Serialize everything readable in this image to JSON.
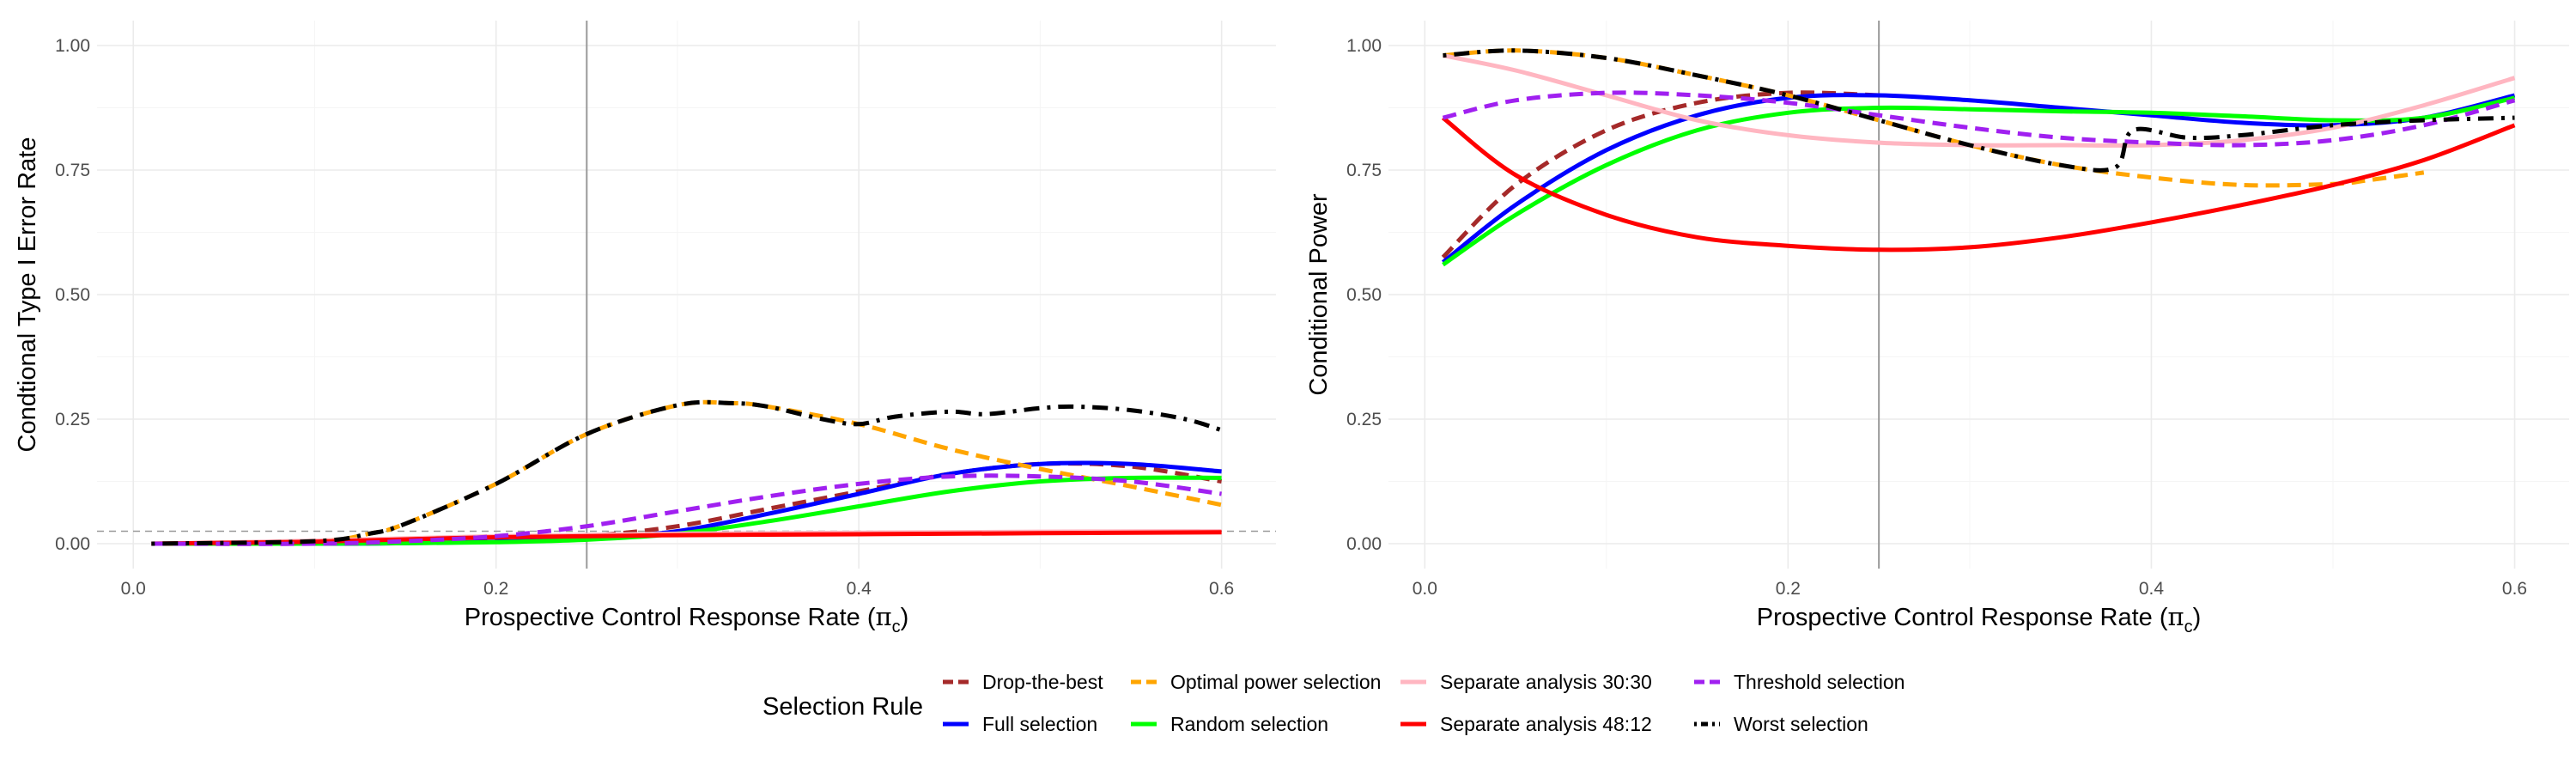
{
  "chart_data": [
    {
      "type": "line",
      "panel": "left",
      "ylabel": "Condtional Type I Error Rate",
      "xlabel_main": "Prospective Control Response Rate (",
      "xlabel_symbol": "π",
      "xlabel_sub": "c",
      "xlabel_close": ")",
      "xlim": [
        -0.02,
        0.63
      ],
      "ylim": [
        -0.05,
        1.05
      ],
      "x_ticks": [
        0.0,
        0.2,
        0.4,
        0.6
      ],
      "x_tick_labels": [
        "0.0",
        "0.2",
        "0.4",
        "0.6"
      ],
      "y_ticks": [
        0.0,
        0.25,
        0.5,
        0.75,
        1.0
      ],
      "y_tick_labels": [
        "0.00",
        "0.25",
        "0.50",
        "0.75",
        "1.00"
      ],
      "vline": 0.25,
      "hline": 0.025,
      "series": [
        {
          "name": "Drop-the-best",
          "x": [
            0.01,
            0.1,
            0.15,
            0.2,
            0.25,
            0.3,
            0.35,
            0.4,
            0.45,
            0.5,
            0.55,
            0.6
          ],
          "y": [
            0.0,
            0.0,
            0.002,
            0.007,
            0.015,
            0.035,
            0.07,
            0.105,
            0.14,
            0.16,
            0.155,
            0.125
          ]
        },
        {
          "name": "Full selection",
          "x": [
            0.01,
            0.1,
            0.15,
            0.2,
            0.25,
            0.3,
            0.35,
            0.4,
            0.45,
            0.5,
            0.55,
            0.6
          ],
          "y": [
            0.0,
            0.0,
            0.001,
            0.004,
            0.01,
            0.025,
            0.06,
            0.1,
            0.14,
            0.16,
            0.16,
            0.145
          ]
        },
        {
          "name": "Optimal power selection",
          "x": [
            0.01,
            0.1,
            0.13,
            0.15,
            0.2,
            0.25,
            0.3,
            0.33,
            0.35,
            0.4,
            0.45,
            0.5,
            0.55,
            0.6
          ],
          "y": [
            0.0,
            0.005,
            0.02,
            0.04,
            0.12,
            0.22,
            0.278,
            0.282,
            0.275,
            0.24,
            0.19,
            0.15,
            0.115,
            0.078
          ]
        },
        {
          "name": "Random selection",
          "x": [
            0.01,
            0.1,
            0.15,
            0.2,
            0.25,
            0.3,
            0.35,
            0.4,
            0.45,
            0.5,
            0.55,
            0.6
          ],
          "y": [
            0.0,
            0.0,
            0.001,
            0.003,
            0.008,
            0.02,
            0.045,
            0.075,
            0.105,
            0.125,
            0.132,
            0.132
          ]
        },
        {
          "name": "Separate analysis 30:30",
          "x": [
            0.01,
            0.1,
            0.2,
            0.3,
            0.4,
            0.5,
            0.6
          ],
          "y": [
            0.0,
            0.006,
            0.015,
            0.02,
            0.022,
            0.024,
            0.025
          ]
        },
        {
          "name": "Separate analysis 48:12",
          "x": [
            0.01,
            0.1,
            0.2,
            0.3,
            0.4,
            0.5,
            0.6
          ],
          "y": [
            0.0,
            0.004,
            0.013,
            0.017,
            0.019,
            0.021,
            0.023
          ]
        },
        {
          "name": "Threshold selection",
          "x": [
            0.01,
            0.1,
            0.15,
            0.2,
            0.25,
            0.3,
            0.35,
            0.4,
            0.45,
            0.5,
            0.55,
            0.6
          ],
          "y": [
            0.0,
            0.0,
            0.005,
            0.015,
            0.035,
            0.065,
            0.095,
            0.12,
            0.135,
            0.135,
            0.125,
            0.1
          ]
        },
        {
          "name": "Worst selection",
          "x": [
            0.01,
            0.1,
            0.13,
            0.15,
            0.2,
            0.25,
            0.3,
            0.33,
            0.35,
            0.38,
            0.4,
            0.42,
            0.45,
            0.47,
            0.5,
            0.52,
            0.55,
            0.58,
            0.6
          ],
          "y": [
            0.0,
            0.005,
            0.02,
            0.04,
            0.12,
            0.22,
            0.278,
            0.282,
            0.275,
            0.25,
            0.24,
            0.255,
            0.265,
            0.26,
            0.272,
            0.275,
            0.268,
            0.25,
            0.228
          ]
        }
      ]
    },
    {
      "type": "line",
      "panel": "right",
      "ylabel": "Conditional Power",
      "xlabel_main": "Prospective Control Response Rate (",
      "xlabel_symbol": "π",
      "xlabel_sub": "c",
      "xlabel_close": ")",
      "xlim": [
        -0.02,
        0.63
      ],
      "ylim": [
        -0.05,
        1.05
      ],
      "x_ticks": [
        0.0,
        0.2,
        0.4,
        0.6
      ],
      "x_tick_labels": [
        "0.0",
        "0.2",
        "0.4",
        "0.6"
      ],
      "y_ticks": [
        0.0,
        0.25,
        0.5,
        0.75,
        1.0
      ],
      "y_tick_labels": [
        "0.00",
        "0.25",
        "0.50",
        "0.75",
        "1.00"
      ],
      "vline": 0.25,
      "series": [
        {
          "name": "Drop-the-best",
          "x": [
            0.01,
            0.05,
            0.1,
            0.15,
            0.2,
            0.25
          ],
          "y": [
            0.575,
            0.72,
            0.83,
            0.885,
            0.905,
            0.9
          ]
        },
        {
          "name": "Full selection",
          "x": [
            0.01,
            0.05,
            0.1,
            0.15,
            0.2,
            0.25,
            0.3,
            0.35,
            0.4,
            0.45,
            0.5,
            0.55,
            0.6
          ],
          "y": [
            0.565,
            0.68,
            0.79,
            0.86,
            0.895,
            0.9,
            0.89,
            0.875,
            0.86,
            0.845,
            0.84,
            0.855,
            0.9
          ]
        },
        {
          "name": "Optimal power selection",
          "x": [
            0.01,
            0.05,
            0.1,
            0.15,
            0.2,
            0.25,
            0.3,
            0.35,
            0.4,
            0.45,
            0.5,
            0.52,
            0.55
          ],
          "y": [
            0.98,
            0.99,
            0.975,
            0.94,
            0.9,
            0.85,
            0.8,
            0.76,
            0.735,
            0.72,
            0.722,
            0.73,
            0.745
          ]
        },
        {
          "name": "Random selection",
          "x": [
            0.01,
            0.05,
            0.1,
            0.15,
            0.2,
            0.25,
            0.3,
            0.35,
            0.4,
            0.45,
            0.5,
            0.55,
            0.6
          ],
          "y": [
            0.56,
            0.66,
            0.76,
            0.83,
            0.865,
            0.875,
            0.872,
            0.868,
            0.865,
            0.858,
            0.85,
            0.855,
            0.895
          ]
        },
        {
          "name": "Separate analysis 30:30",
          "x": [
            0.01,
            0.05,
            0.1,
            0.15,
            0.2,
            0.25,
            0.3,
            0.35,
            0.4,
            0.45,
            0.5,
            0.55,
            0.6
          ],
          "y": [
            0.98,
            0.95,
            0.9,
            0.85,
            0.82,
            0.805,
            0.8,
            0.8,
            0.8,
            0.81,
            0.835,
            0.88,
            0.935
          ]
        },
        {
          "name": "Separate analysis 48:12",
          "x": [
            0.01,
            0.05,
            0.1,
            0.15,
            0.2,
            0.25,
            0.3,
            0.35,
            0.4,
            0.45,
            0.5,
            0.55,
            0.6
          ],
          "y": [
            0.855,
            0.74,
            0.66,
            0.615,
            0.598,
            0.59,
            0.595,
            0.615,
            0.645,
            0.68,
            0.72,
            0.77,
            0.84
          ]
        },
        {
          "name": "Threshold selection",
          "x": [
            0.01,
            0.05,
            0.1,
            0.15,
            0.2,
            0.25,
            0.3,
            0.35,
            0.4,
            0.45,
            0.5,
            0.55,
            0.6
          ],
          "y": [
            0.855,
            0.89,
            0.905,
            0.9,
            0.885,
            0.86,
            0.835,
            0.815,
            0.805,
            0.8,
            0.81,
            0.84,
            0.89
          ]
        },
        {
          "name": "Worst selection",
          "x": [
            0.01,
            0.05,
            0.1,
            0.15,
            0.2,
            0.25,
            0.3,
            0.35,
            0.38,
            0.39,
            0.42,
            0.45,
            0.5,
            0.55,
            0.6
          ],
          "y": [
            0.98,
            0.99,
            0.975,
            0.94,
            0.9,
            0.85,
            0.8,
            0.76,
            0.755,
            0.83,
            0.815,
            0.82,
            0.84,
            0.85,
            0.855
          ]
        }
      ]
    }
  ],
  "legend": {
    "title": "Selection Rule",
    "items": [
      {
        "label": "Drop-the-best",
        "color": "#a52a2a",
        "dash": "dashed"
      },
      {
        "label": "Full selection",
        "color": "#0000ff",
        "dash": "solid"
      },
      {
        "label": "Optimal power selection",
        "color": "#ffa500",
        "dash": "dashed"
      },
      {
        "label": "Random selection",
        "color": "#00ff00",
        "dash": "solid"
      },
      {
        "label": "Separate analysis 30:30",
        "color": "#ffb6c1",
        "dash": "solid"
      },
      {
        "label": "Separate analysis 48:12",
        "color": "#ff0000",
        "dash": "solid"
      },
      {
        "label": "Threshold selection",
        "color": "#a020f0",
        "dash": "dashed"
      },
      {
        "label": "Worst selection",
        "color": "#000000",
        "dash": "dotdash"
      }
    ]
  },
  "colors": {
    "grid": "#ebebeb",
    "reference_line": "#999999",
    "tick_text": "#4d4d4d"
  }
}
